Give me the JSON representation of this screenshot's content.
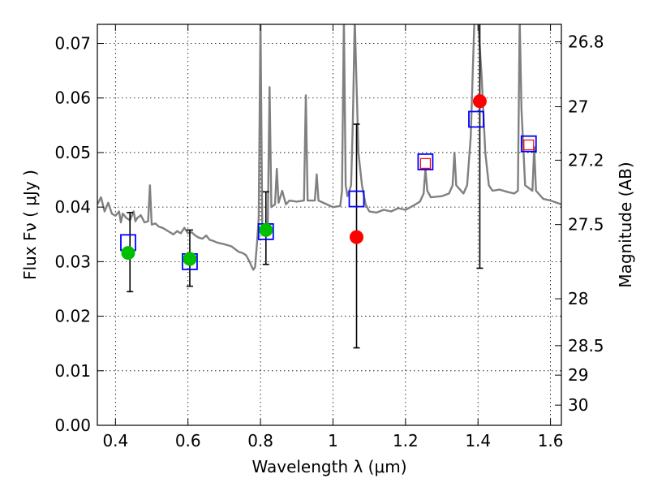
{
  "chart_data": {
    "type": "scatter",
    "xlabel": "Wavelength  λ (μm)",
    "ylabel": "Flux  Fν  ( μJy )",
    "ylabel_right": "Magnitude (AB)",
    "xlim": [
      0.35,
      1.63
    ],
    "ylim": [
      0.0,
      0.0735
    ],
    "grid": true,
    "x_ticks": [
      0.4,
      0.6,
      0.8,
      1.0,
      1.2,
      1.4,
      1.6
    ],
    "x_tick_labels": [
      "0.4",
      "0.6",
      "0.8",
      "1",
      "1.2",
      "1.4",
      "1.6"
    ],
    "y_ticks": [
      0.0,
      0.01,
      0.02,
      0.03,
      0.04,
      0.05,
      0.06,
      0.07
    ],
    "y_tick_labels": [
      "0.00",
      "0.01",
      "0.02",
      "0.03",
      "0.04",
      "0.05",
      "0.06",
      "0.07"
    ],
    "right_ticks": [
      {
        "label": "26.8",
        "flux": 0.0703
      },
      {
        "label": "27",
        "flux": 0.0584
      },
      {
        "label": "27.2",
        "flux": 0.0486
      },
      {
        "label": "27.5",
        "flux": 0.0368
      },
      {
        "label": "28",
        "flux": 0.0232
      },
      {
        "label": "28.5",
        "flux": 0.0146
      },
      {
        "label": "29",
        "flux": 0.0092
      },
      {
        "label": "30",
        "flux": 0.0037
      }
    ],
    "series": [
      {
        "kind": "model_spectrum",
        "color": "#808080",
        "points": [
          [
            0.35,
            0.0405
          ],
          [
            0.36,
            0.0418
          ],
          [
            0.37,
            0.0392
          ],
          [
            0.38,
            0.0408
          ],
          [
            0.39,
            0.0388
          ],
          [
            0.4,
            0.0384
          ],
          [
            0.41,
            0.0392
          ],
          [
            0.415,
            0.0372
          ],
          [
            0.42,
            0.0388
          ],
          [
            0.43,
            0.038
          ],
          [
            0.44,
            0.0376
          ],
          [
            0.45,
            0.0392
          ],
          [
            0.455,
            0.0374
          ],
          [
            0.46,
            0.038
          ],
          [
            0.47,
            0.0385
          ],
          [
            0.48,
            0.0372
          ],
          [
            0.49,
            0.0374
          ],
          [
            0.495,
            0.044
          ],
          [
            0.5,
            0.0368
          ],
          [
            0.51,
            0.037
          ],
          [
            0.52,
            0.0364
          ],
          [
            0.53,
            0.0362
          ],
          [
            0.54,
            0.0358
          ],
          [
            0.55,
            0.0354
          ],
          [
            0.56,
            0.035
          ],
          [
            0.57,
            0.0356
          ],
          [
            0.58,
            0.0352
          ],
          [
            0.59,
            0.0362
          ],
          [
            0.6,
            0.0352
          ],
          [
            0.61,
            0.0354
          ],
          [
            0.62,
            0.0348
          ],
          [
            0.63,
            0.0344
          ],
          [
            0.64,
            0.0342
          ],
          [
            0.65,
            0.0348
          ],
          [
            0.66,
            0.034
          ],
          [
            0.67,
            0.0338
          ],
          [
            0.68,
            0.0335
          ],
          [
            0.7,
            0.0332
          ],
          [
            0.72,
            0.0328
          ],
          [
            0.74,
            0.0318
          ],
          [
            0.75,
            0.0316
          ],
          [
            0.76,
            0.0312
          ],
          [
            0.77,
            0.03
          ],
          [
            0.775,
            0.0292
          ],
          [
            0.78,
            0.0285
          ],
          [
            0.785,
            0.029
          ],
          [
            0.79,
            0.033
          ],
          [
            0.795,
            0.038
          ],
          [
            0.8,
            0.0745
          ],
          [
            0.805,
            0.036
          ],
          [
            0.81,
            0.0352
          ],
          [
            0.815,
            0.0355
          ],
          [
            0.82,
            0.036
          ],
          [
            0.825,
            0.062
          ],
          [
            0.83,
            0.04
          ],
          [
            0.84,
            0.0405
          ],
          [
            0.845,
            0.047
          ],
          [
            0.85,
            0.0408
          ],
          [
            0.86,
            0.043
          ],
          [
            0.87,
            0.0405
          ],
          [
            0.88,
            0.0412
          ],
          [
            0.9,
            0.041
          ],
          [
            0.92,
            0.0412
          ],
          [
            0.925,
            0.0605
          ],
          [
            0.93,
            0.0412
          ],
          [
            0.95,
            0.0412
          ],
          [
            0.955,
            0.046
          ],
          [
            0.96,
            0.0412
          ],
          [
            1.0,
            0.04
          ],
          [
            1.02,
            0.0402
          ],
          [
            1.025,
            0.043
          ],
          [
            1.03,
            0.0745
          ],
          [
            1.035,
            0.044
          ],
          [
            1.04,
            0.042
          ],
          [
            1.05,
            0.044
          ],
          [
            1.055,
            0.056
          ],
          [
            1.06,
            0.0745
          ],
          [
            1.07,
            0.05
          ],
          [
            1.08,
            0.044
          ],
          [
            1.09,
            0.0405
          ],
          [
            1.1,
            0.0392
          ],
          [
            1.12,
            0.039
          ],
          [
            1.14,
            0.0395
          ],
          [
            1.16,
            0.0392
          ],
          [
            1.18,
            0.0398
          ],
          [
            1.2,
            0.0395
          ],
          [
            1.22,
            0.0402
          ],
          [
            1.24,
            0.041
          ],
          [
            1.25,
            0.0425
          ],
          [
            1.255,
            0.047
          ],
          [
            1.26,
            0.043
          ],
          [
            1.27,
            0.0418
          ],
          [
            1.3,
            0.042
          ],
          [
            1.32,
            0.0425
          ],
          [
            1.33,
            0.044
          ],
          [
            1.335,
            0.05
          ],
          [
            1.34,
            0.044
          ],
          [
            1.36,
            0.0425
          ],
          [
            1.37,
            0.044
          ],
          [
            1.38,
            0.053
          ],
          [
            1.39,
            0.0745
          ],
          [
            1.4,
            0.0745
          ],
          [
            1.41,
            0.064
          ],
          [
            1.42,
            0.05
          ],
          [
            1.43,
            0.044
          ],
          [
            1.44,
            0.043
          ],
          [
            1.46,
            0.0432
          ],
          [
            1.48,
            0.0428
          ],
          [
            1.5,
            0.0425
          ],
          [
            1.51,
            0.043
          ],
          [
            1.515,
            0.0745
          ],
          [
            1.52,
            0.058
          ],
          [
            1.53,
            0.044
          ],
          [
            1.55,
            0.043
          ],
          [
            1.555,
            0.051
          ],
          [
            1.56,
            0.043
          ],
          [
            1.58,
            0.0415
          ],
          [
            1.6,
            0.0412
          ],
          [
            1.63,
            0.0405
          ]
        ]
      },
      {
        "kind": "observed_green",
        "color": "#00bf00",
        "points": [
          {
            "x": 0.435,
            "y": 0.0316
          },
          {
            "x": 0.605,
            "y": 0.0305
          },
          {
            "x": 0.815,
            "y": 0.0358
          }
        ]
      },
      {
        "kind": "observed_red",
        "color": "#ff0000",
        "points": [
          {
            "x": 1.065,
            "y": 0.0345
          },
          {
            "x": 1.405,
            "y": 0.0594
          }
        ]
      },
      {
        "kind": "model_photometry_blue",
        "color": "#0000ff",
        "points": [
          {
            "x": 0.435,
            "y": 0.0335
          },
          {
            "x": 0.605,
            "y": 0.03
          },
          {
            "x": 0.815,
            "y": 0.0355
          },
          {
            "x": 1.065,
            "y": 0.0415
          },
          {
            "x": 1.255,
            "y": 0.0483
          },
          {
            "x": 1.395,
            "y": 0.0561
          },
          {
            "x": 1.54,
            "y": 0.0516
          }
        ]
      },
      {
        "kind": "model_photometry_red_small",
        "color": "#ff0000",
        "points": [
          {
            "x": 1.255,
            "y": 0.048
          },
          {
            "x": 1.54,
            "y": 0.0514
          }
        ]
      }
    ],
    "error_bars": [
      {
        "x": 0.44,
        "ylow": 0.0245,
        "yhigh": 0.039
      },
      {
        "x": 0.605,
        "ylow": 0.0255,
        "yhigh": 0.0358
      },
      {
        "x": 0.815,
        "ylow": 0.0295,
        "yhigh": 0.0428
      },
      {
        "x": 1.065,
        "ylow": 0.0142,
        "yhigh": 0.0552
      },
      {
        "x": 1.405,
        "ylow": 0.0288,
        "yhigh": 0.074
      }
    ]
  }
}
